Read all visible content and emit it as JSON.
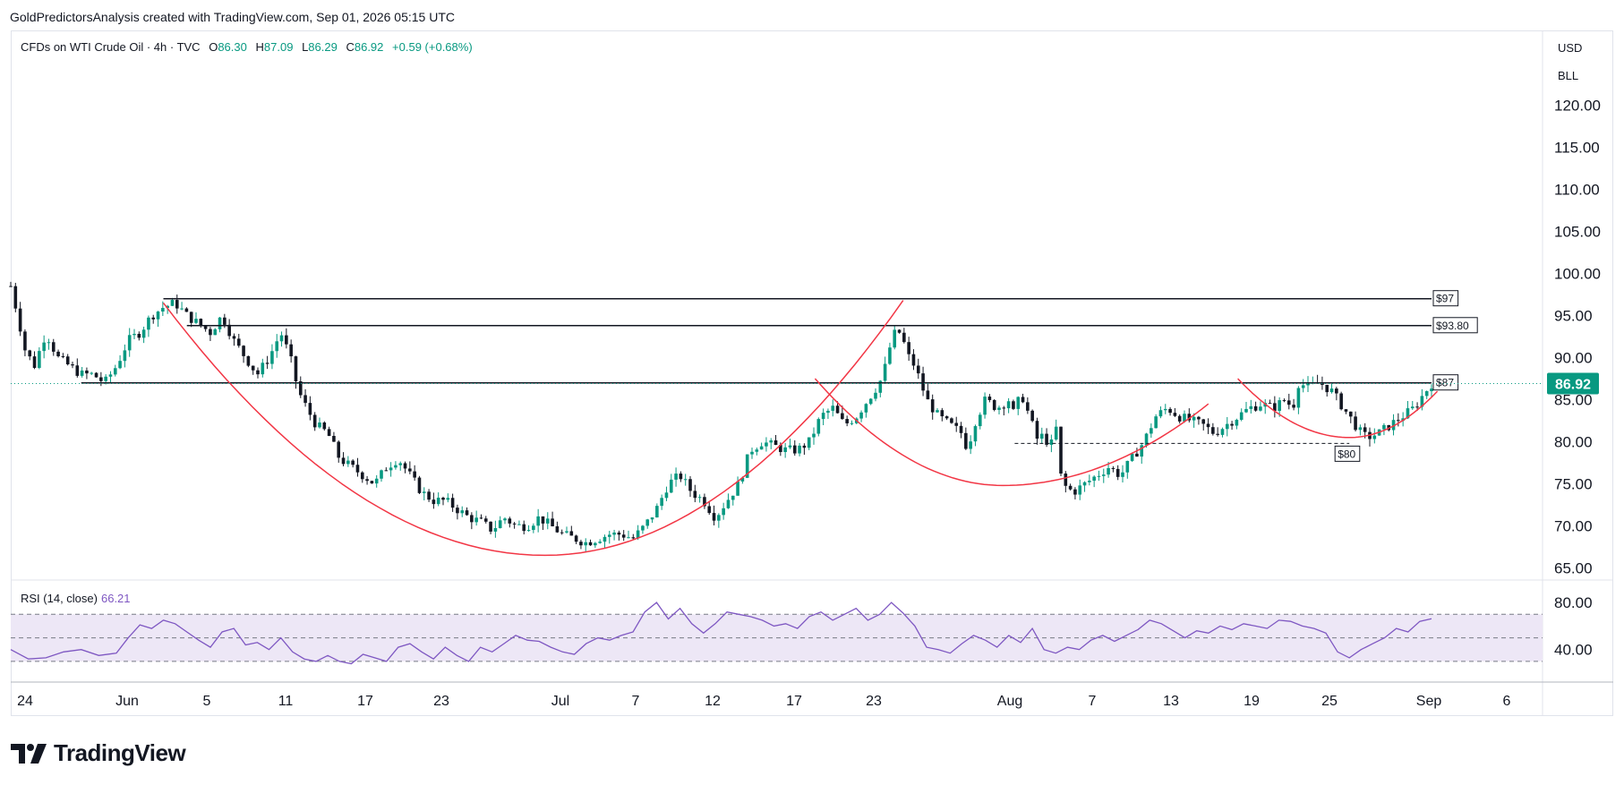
{
  "header": {
    "attribution": "GoldPredictorsAnalysis created with TradingView.com, Sep 01, 2026 05:15 UTC"
  },
  "legend": {
    "symbol": "CFDs on WTI Crude Oil · 4h · TVC",
    "open_label": "O",
    "open": "86.30",
    "high_label": "H",
    "high": "87.09",
    "low_label": "L",
    "low": "86.29",
    "close_label": "C",
    "close": "86.92",
    "change": "+0.59 (+0.68%)"
  },
  "price_axis": {
    "currency": "USD",
    "unit": "BLL",
    "last_price": "86.92"
  },
  "rsi": {
    "label": "RSI (14, close)",
    "value": "66.21"
  },
  "footer": {
    "brand": "TradingView"
  },
  "colors": {
    "up": "#089981",
    "down": "#131722",
    "curve": "#f23645",
    "rsi_line": "#7e57c2",
    "rsi_band": "#ede7f6",
    "last_price_bg": "#089981",
    "hline": "#131722"
  },
  "chart_data": {
    "type": "candlestick",
    "title": "CFDs on WTI Crude Oil · 4h · TVC",
    "price_range": [
      63,
      123
    ],
    "y_ticks": [
      "120.00",
      "115.00",
      "110.00",
      "105.00",
      "100.00",
      "95.00",
      "90.00",
      "85.00",
      "80.00",
      "75.00",
      "70.00",
      "65.00"
    ],
    "x_ticks": [
      "24",
      "Jun",
      "5",
      "11",
      "17",
      "23",
      "Jul",
      "7",
      "12",
      "17",
      "23",
      "Aug",
      "7",
      "13",
      "19",
      "25",
      "Sep",
      "6"
    ],
    "price_path": [
      [
        0,
        98.5
      ],
      [
        6,
        95
      ],
      [
        12,
        91
      ],
      [
        20,
        89
      ],
      [
        30,
        93
      ],
      [
        40,
        90
      ],
      [
        50,
        89
      ],
      [
        60,
        88
      ],
      [
        70,
        88
      ],
      [
        80,
        87
      ],
      [
        90,
        89
      ],
      [
        100,
        92
      ],
      [
        110,
        93
      ],
      [
        120,
        95
      ],
      [
        130,
        96
      ],
      [
        140,
        96.5
      ],
      [
        150,
        95
      ],
      [
        160,
        94
      ],
      [
        170,
        93
      ],
      [
        180,
        95
      ],
      [
        190,
        92
      ],
      [
        200,
        90
      ],
      [
        210,
        88
      ],
      [
        220,
        90
      ],
      [
        230,
        93
      ],
      [
        238,
        90
      ],
      [
        245,
        86
      ],
      [
        252,
        84
      ],
      [
        260,
        82
      ],
      [
        270,
        81
      ],
      [
        280,
        78
      ],
      [
        290,
        77
      ],
      [
        300,
        76
      ],
      [
        310,
        75
      ],
      [
        320,
        77
      ],
      [
        330,
        78
      ],
      [
        340,
        76
      ],
      [
        350,
        74
      ],
      [
        360,
        73
      ],
      [
        370,
        73
      ],
      [
        380,
        72
      ],
      [
        390,
        71
      ],
      [
        400,
        70.5
      ],
      [
        410,
        69.5
      ],
      [
        420,
        71
      ],
      [
        430,
        70
      ],
      [
        440,
        70
      ],
      [
        450,
        71
      ],
      [
        460,
        70
      ],
      [
        470,
        69
      ],
      [
        480,
        68.5
      ],
      [
        490,
        68
      ],
      [
        500,
        68.5
      ],
      [
        510,
        69
      ],
      [
        520,
        69
      ],
      [
        530,
        68.5
      ],
      [
        540,
        70
      ],
      [
        550,
        72
      ],
      [
        560,
        75
      ],
      [
        570,
        76
      ],
      [
        580,
        74
      ],
      [
        590,
        73
      ],
      [
        600,
        71
      ],
      [
        610,
        73
      ],
      [
        620,
        75
      ],
      [
        630,
        79
      ],
      [
        640,
        80
      ],
      [
        650,
        79.5
      ],
      [
        660,
        79
      ],
      [
        670,
        79
      ],
      [
        680,
        80
      ],
      [
        690,
        83
      ],
      [
        700,
        84
      ],
      [
        710,
        82
      ],
      [
        720,
        83
      ],
      [
        730,
        85
      ],
      [
        740,
        87
      ],
      [
        745,
        89
      ],
      [
        750,
        92
      ],
      [
        755,
        93.5
      ],
      [
        760,
        92
      ],
      [
        765,
        90
      ],
      [
        770,
        89
      ],
      [
        775,
        87
      ],
      [
        780,
        85
      ],
      [
        790,
        83
      ],
      [
        800,
        82
      ],
      [
        810,
        81
      ],
      [
        815,
        79
      ],
      [
        820,
        82
      ],
      [
        830,
        85
      ],
      [
        840,
        84
      ],
      [
        850,
        85
      ],
      [
        855,
        83
      ],
      [
        860,
        86
      ],
      [
        865,
        84
      ],
      [
        870,
        82
      ],
      [
        875,
        80
      ],
      [
        880,
        81
      ],
      [
        885,
        79
      ],
      [
        890,
        82
      ],
      [
        895,
        75
      ],
      [
        905,
        74
      ],
      [
        915,
        75
      ],
      [
        925,
        76
      ],
      [
        935,
        77
      ],
      [
        945,
        76
      ],
      [
        955,
        78
      ],
      [
        965,
        80
      ],
      [
        975,
        83
      ],
      [
        985,
        84
      ],
      [
        995,
        83
      ],
      [
        1005,
        82.5
      ],
      [
        1015,
        82
      ],
      [
        1025,
        81
      ],
      [
        1035,
        82
      ],
      [
        1045,
        83
      ],
      [
        1055,
        84
      ],
      [
        1065,
        84.5
      ],
      [
        1075,
        84
      ],
      [
        1085,
        85
      ],
      [
        1092,
        84
      ],
      [
        1096,
        87
      ],
      [
        1105,
        86.5
      ],
      [
        1115,
        87
      ],
      [
        1125,
        86
      ],
      [
        1130,
        85
      ],
      [
        1135,
        84
      ],
      [
        1140,
        83
      ],
      [
        1145,
        82
      ],
      [
        1150,
        81
      ],
      [
        1155,
        80.5
      ],
      [
        1165,
        81
      ],
      [
        1175,
        82
      ],
      [
        1185,
        83
      ],
      [
        1190,
        83.5
      ],
      [
        1195,
        84
      ],
      [
        1200,
        85
      ],
      [
        1205,
        86
      ],
      [
        1210,
        86.9
      ]
    ],
    "path_x_range": [
      0,
      1210
    ],
    "horizontal_levels": [
      {
        "price": 97,
        "label": "$97",
        "from": 130,
        "to": 1210,
        "style": "solid"
      },
      {
        "price": 93.8,
        "label": "$93.80",
        "from": 150,
        "to": 1210,
        "style": "solid"
      },
      {
        "price": 87,
        "label": "$87",
        "from": 60,
        "to": 1210,
        "style": "solid"
      },
      {
        "price": 79.8,
        "label": "$80",
        "from": 855,
        "to": 1140,
        "style": "dashed"
      }
    ],
    "curves": [
      {
        "from": [
          130,
          96.5
        ],
        "bottom": [
          455,
          66.5
        ],
        "to": [
          760,
          96.8
        ]
      },
      {
        "from": [
          685,
          87.5
        ],
        "bottom": [
          845,
          74.8
        ],
        "to": [
          1020,
          84.5
        ]
      },
      {
        "from": [
          1045,
          87.5
        ],
        "bottom": [
          1140,
          80.5
        ],
        "to": [
          1215,
          86
        ]
      }
    ],
    "rsi_range": [
      20,
      90
    ],
    "rsi_levels": [
      70,
      50,
      30
    ],
    "rsi_path": [
      [
        0,
        40
      ],
      [
        15,
        32
      ],
      [
        30,
        33
      ],
      [
        45,
        38
      ],
      [
        60,
        40
      ],
      [
        75,
        35
      ],
      [
        90,
        37
      ],
      [
        100,
        50
      ],
      [
        110,
        61
      ],
      [
        120,
        58
      ],
      [
        130,
        65
      ],
      [
        140,
        62
      ],
      [
        150,
        55
      ],
      [
        160,
        48
      ],
      [
        170,
        42
      ],
      [
        180,
        55
      ],
      [
        190,
        58
      ],
      [
        200,
        44
      ],
      [
        210,
        46
      ],
      [
        220,
        40
      ],
      [
        230,
        50
      ],
      [
        240,
        38
      ],
      [
        250,
        32
      ],
      [
        260,
        30
      ],
      [
        270,
        35
      ],
      [
        280,
        30
      ],
      [
        290,
        28
      ],
      [
        300,
        36
      ],
      [
        310,
        33
      ],
      [
        320,
        30
      ],
      [
        330,
        42
      ],
      [
        340,
        45
      ],
      [
        350,
        38
      ],
      [
        360,
        32
      ],
      [
        370,
        42
      ],
      [
        380,
        35
      ],
      [
        390,
        30
      ],
      [
        400,
        42
      ],
      [
        410,
        38
      ],
      [
        420,
        45
      ],
      [
        430,
        52
      ],
      [
        440,
        48
      ],
      [
        450,
        47
      ],
      [
        460,
        42
      ],
      [
        470,
        38
      ],
      [
        480,
        36
      ],
      [
        490,
        45
      ],
      [
        500,
        50
      ],
      [
        510,
        48
      ],
      [
        520,
        52
      ],
      [
        530,
        55
      ],
      [
        540,
        72
      ],
      [
        550,
        80
      ],
      [
        560,
        66
      ],
      [
        570,
        75
      ],
      [
        580,
        62
      ],
      [
        590,
        54
      ],
      [
        600,
        62
      ],
      [
        610,
        72
      ],
      [
        620,
        70
      ],
      [
        630,
        68
      ],
      [
        640,
        65
      ],
      [
        650,
        60
      ],
      [
        660,
        62
      ],
      [
        670,
        58
      ],
      [
        680,
        68
      ],
      [
        690,
        72
      ],
      [
        700,
        65
      ],
      [
        710,
        70
      ],
      [
        720,
        75
      ],
      [
        730,
        65
      ],
      [
        740,
        70
      ],
      [
        750,
        80
      ],
      [
        760,
        71
      ],
      [
        770,
        60
      ],
      [
        780,
        42
      ],
      [
        790,
        40
      ],
      [
        800,
        37
      ],
      [
        810,
        45
      ],
      [
        820,
        52
      ],
      [
        830,
        48
      ],
      [
        840,
        42
      ],
      [
        850,
        52
      ],
      [
        860,
        46
      ],
      [
        870,
        58
      ],
      [
        880,
        40
      ],
      [
        890,
        37
      ],
      [
        900,
        42
      ],
      [
        910,
        40
      ],
      [
        920,
        48
      ],
      [
        930,
        52
      ],
      [
        940,
        47
      ],
      [
        950,
        52
      ],
      [
        960,
        57
      ],
      [
        970,
        65
      ],
      [
        980,
        62
      ],
      [
        990,
        56
      ],
      [
        1000,
        50
      ],
      [
        1010,
        56
      ],
      [
        1020,
        54
      ],
      [
        1030,
        60
      ],
      [
        1040,
        57
      ],
      [
        1050,
        62
      ],
      [
        1060,
        60
      ],
      [
        1070,
        58
      ],
      [
        1080,
        65
      ],
      [
        1090,
        64
      ],
      [
        1100,
        60
      ],
      [
        1110,
        58
      ],
      [
        1120,
        54
      ],
      [
        1130,
        38
      ],
      [
        1140,
        33
      ],
      [
        1150,
        40
      ],
      [
        1160,
        45
      ],
      [
        1170,
        50
      ],
      [
        1180,
        58
      ],
      [
        1190,
        55
      ],
      [
        1200,
        64
      ],
      [
        1210,
        66.2
      ]
    ]
  }
}
